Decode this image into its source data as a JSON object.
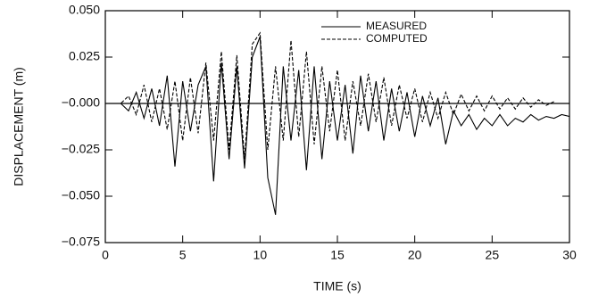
{
  "chart_data": {
    "type": "line",
    "xlabel": "TIME (s)",
    "ylabel": "DISPLACEMENT (m)",
    "x": [
      0,
      0.5,
      1,
      1.5,
      2,
      2.5,
      3,
      3.5,
      4,
      4.5,
      5,
      5.5,
      6,
      6.5,
      7,
      7.5,
      8,
      8.5,
      9,
      9.5,
      10,
      10.5,
      11,
      11.5,
      12,
      12.5,
      13,
      13.5,
      14,
      14.5,
      15,
      15.5,
      16,
      16.5,
      17,
      17.5,
      18,
      18.5,
      19,
      19.5,
      20,
      20.5,
      21,
      21.5,
      22,
      22.5,
      23,
      23.5,
      24,
      24.5,
      25,
      25.5,
      26,
      26.5,
      27,
      27.5,
      28,
      28.5,
      29,
      29.5,
      30
    ],
    "series": [
      {
        "name": "MEASURED",
        "color": "#000000",
        "style": "solid",
        "values": [
          0,
          0,
          0,
          -0.004,
          0.006,
          -0.008,
          0.008,
          -0.012,
          0.015,
          -0.034,
          0.012,
          -0.015,
          0.01,
          0.02,
          -0.042,
          0.022,
          -0.03,
          0.02,
          -0.035,
          0.025,
          0.036,
          -0.04,
          -0.06,
          0.02,
          -0.02,
          0.018,
          -0.036,
          0.02,
          -0.03,
          0.012,
          -0.02,
          0.01,
          -0.027,
          0.015,
          -0.015,
          0.012,
          -0.02,
          0.008,
          -0.015,
          0.006,
          -0.018,
          0.004,
          -0.012,
          0.003,
          -0.022,
          -0.004,
          -0.012,
          -0.006,
          -0.014,
          -0.008,
          -0.012,
          -0.006,
          -0.012,
          -0.008,
          -0.01,
          -0.006,
          -0.009,
          -0.007,
          -0.008,
          -0.006,
          -0.007
        ]
      },
      {
        "name": "COMPUTED",
        "color": "#000000",
        "style": "dashed",
        "values": [
          0,
          0,
          0,
          0.004,
          -0.006,
          0.01,
          -0.01,
          0.008,
          -0.014,
          0.012,
          -0.02,
          0.014,
          -0.016,
          0.022,
          -0.02,
          0.028,
          -0.025,
          0.026,
          -0.03,
          0.032,
          0.038,
          -0.025,
          0.02,
          -0.02,
          0.034,
          -0.018,
          0.028,
          -0.022,
          0.02,
          -0.015,
          0.018,
          -0.02,
          0.012,
          -0.012,
          0.016,
          -0.01,
          0.014,
          -0.012,
          0.01,
          -0.008,
          0.008,
          -0.01,
          0.006,
          -0.008,
          0.006,
          -0.006,
          0.005,
          -0.004,
          0.004,
          -0.004,
          0.004,
          -0.003,
          0.003,
          -0.003,
          0.003,
          -0.002,
          0.002,
          -0.001,
          0.001,
          null,
          null
        ]
      }
    ],
    "xlim": [
      0,
      30
    ],
    "xticks": [
      0,
      5,
      10,
      15,
      20,
      25,
      30
    ],
    "ylim": [
      -0.075,
      0.05
    ],
    "yticks": [
      {
        "value": 0.05,
        "label": "0.050"
      },
      {
        "value": 0.025,
        "label": "0.025"
      },
      {
        "value": 0,
        "label": "−0.000"
      },
      {
        "value": -0.025,
        "label": "−0.025"
      },
      {
        "value": -0.05,
        "label": "−0.050"
      },
      {
        "value": -0.075,
        "label": "−0.075"
      }
    ],
    "zero_line": true,
    "legend": "upper-right"
  }
}
